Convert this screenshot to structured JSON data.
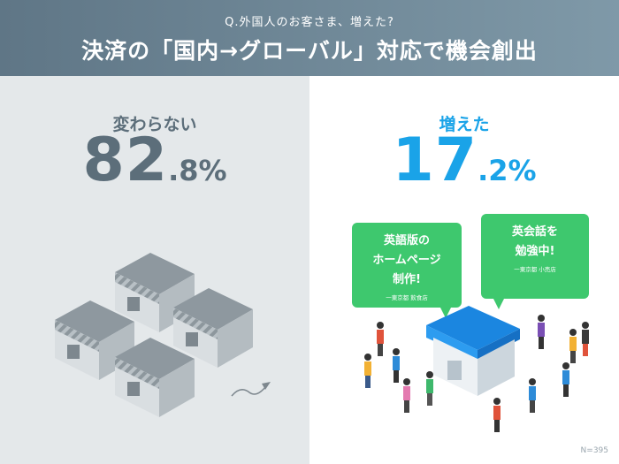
{
  "header": {
    "question": "Q.外国人のお客さま、増えた?",
    "title": "決済の「国内→グローバル」対応で機会創出"
  },
  "chart_data": {
    "type": "bar",
    "categories": [
      "変わらない",
      "増えた"
    ],
    "values": [
      82.8,
      17.2
    ],
    "unit": "%",
    "title": "決済の「国内→グローバル」対応で機会創出",
    "sample_size": "N=395"
  },
  "left": {
    "label": "変わらない",
    "big": "82",
    "small": ".8%"
  },
  "right": {
    "label": "増えた",
    "big": "17",
    "small": ".2%"
  },
  "bubbles": [
    {
      "lines": [
        "英語版の",
        "ホームページ",
        "制作!"
      ],
      "source": "一東京都 飲食店"
    },
    {
      "lines": [
        "英会話を",
        "勉強中!"
      ],
      "source": "一東京都 小売店"
    }
  ],
  "colors": {
    "header": "#6f8797",
    "muted": "#5c6e7a",
    "accent": "#1aa3e8",
    "bubble": "#3ec86e"
  },
  "footer": {
    "n": "N=395"
  }
}
